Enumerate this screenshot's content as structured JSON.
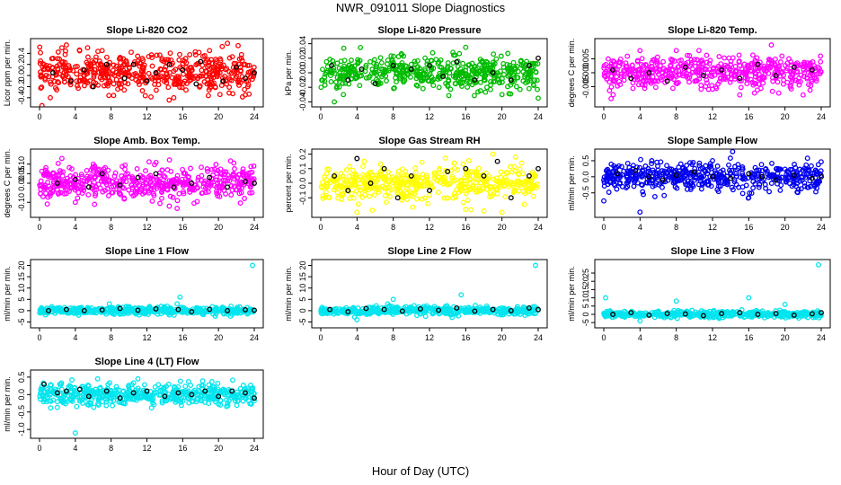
{
  "figure": {
    "title": "NWR_091011  Slope Diagnostics",
    "xlabel": "Hour of Day (UTC)"
  },
  "chart_data": [
    {
      "type": "scatter",
      "title": "Slope Li-820 CO2",
      "ylabel": "Licor ppm per min.",
      "xlim": [
        0,
        24
      ],
      "ylim": [
        -0.5,
        0.6
      ],
      "xticks": [
        0,
        4,
        8,
        12,
        16,
        20,
        24
      ],
      "yticks": [
        -0.4,
        -0.2,
        0.0,
        0.2,
        0.4
      ],
      "ytick_labels": [
        "-0.4",
        "-0.2",
        "0.0",
        "0.2",
        "0.4"
      ],
      "color": "#ff0000",
      "spread": 0.17,
      "n": 500,
      "outliers": [
        [
          1.2,
          -0.4
        ],
        [
          2.5,
          0.5
        ],
        [
          3,
          0.55
        ],
        [
          7,
          0.45
        ],
        [
          15,
          -0.4
        ],
        [
          19,
          0.45
        ],
        [
          21,
          0.58
        ],
        [
          23,
          -0.35
        ]
      ],
      "dark_points": [
        [
          1.5,
          0.05
        ],
        [
          3.5,
          -0.1
        ],
        [
          5,
          0.1
        ],
        [
          6,
          -0.2
        ],
        [
          7.5,
          0.2
        ],
        [
          9.5,
          -0.05
        ],
        [
          10.5,
          0.2
        ],
        [
          12,
          -0.1
        ],
        [
          13,
          0.05
        ],
        [
          14.5,
          0.2
        ],
        [
          16,
          0.1
        ],
        [
          17.5,
          -0.15
        ],
        [
          18,
          0.25
        ],
        [
          20.5,
          -0.1
        ],
        [
          22,
          0.15
        ],
        [
          23,
          -0.05
        ],
        [
          24,
          0.05
        ]
      ],
      "series": [
        {
          "name": "slope",
          "values": "scatter of ~500 points centred near 0.05"
        }
      ]
    },
    {
      "type": "scatter",
      "title": "Slope Li-820 Pressure",
      "ylabel": "kPa per min.",
      "xlim": [
        0,
        24
      ],
      "ylim": [
        -0.042,
        0.042
      ],
      "xticks": [
        0,
        4,
        8,
        12,
        16,
        20,
        24
      ],
      "yticks": [
        -0.04,
        -0.02,
        0.0,
        0.02,
        0.04
      ],
      "ytick_labels": [
        "-0.04",
        "-0.02",
        "0.00",
        "0.02",
        "0.04"
      ],
      "color": "#00bb00",
      "spread": 0.011,
      "n": 500,
      "outliers": [
        [
          1.5,
          -0.04
        ],
        [
          16,
          0.035
        ],
        [
          2.5,
          -0.03
        ],
        [
          20,
          -0.03
        ],
        [
          24,
          -0.035
        ]
      ],
      "dark_points": [
        [
          1.2,
          0.01
        ],
        [
          3,
          -0.01
        ],
        [
          4.5,
          0.005
        ],
        [
          6,
          -0.015
        ],
        [
          8,
          0.01
        ],
        [
          10,
          0.005
        ],
        [
          12,
          0.01
        ],
        [
          13.5,
          -0.005
        ],
        [
          15,
          0.015
        ],
        [
          17,
          -0.01
        ],
        [
          19,
          0.0
        ],
        [
          21,
          -0.01
        ],
        [
          23,
          0.01
        ],
        [
          24,
          0.02
        ]
      ],
      "series": [
        {
          "name": "slope",
          "values": "scatter of ~500 points centred near 0"
        }
      ]
    },
    {
      "type": "scatter",
      "title": "Slope Li-820 Temp.",
      "ylabel": "degrees C per min.",
      "xlim": [
        0,
        24
      ],
      "ylim": [
        -0.011,
        0.011
      ],
      "xticks": [
        0,
        4,
        8,
        12,
        16,
        20,
        24
      ],
      "yticks": [
        -0.005,
        0.0,
        0.005
      ],
      "ytick_labels": [
        "-0.005",
        "0.000",
        "0.005"
      ],
      "color": "#ff00ff",
      "spread": 0.0028,
      "n": 500,
      "outliers": [
        [
          4,
          0.008
        ],
        [
          8,
          0.008
        ],
        [
          10.5,
          0.008
        ],
        [
          18.5,
          0.01
        ],
        [
          15,
          -0.008
        ],
        [
          22,
          -0.008
        ]
      ],
      "dark_points": [
        [
          1,
          0.001
        ],
        [
          3,
          -0.002
        ],
        [
          5,
          0.0
        ],
        [
          7,
          -0.003
        ],
        [
          9,
          0.002
        ],
        [
          11,
          -0.001
        ],
        [
          13,
          0.001
        ],
        [
          15,
          -0.002
        ],
        [
          17,
          0.003
        ],
        [
          19,
          -0.001
        ],
        [
          21,
          0.002
        ],
        [
          23,
          0.001
        ]
      ],
      "series": [
        {
          "name": "slope",
          "values": "scatter of ~500 points centred near 0"
        }
      ]
    },
    {
      "type": "scatter",
      "title": "Slope Amb. Box Temp.",
      "ylabel": "degrees C per min.",
      "xlim": [
        0,
        24
      ],
      "ylim": [
        -0.16,
        0.16
      ],
      "xticks": [
        0,
        4,
        8,
        12,
        16,
        20,
        24
      ],
      "yticks": [
        -0.1,
        0.0,
        0.05,
        0.1
      ],
      "ytick_labels": [
        "-0.10",
        "0.00",
        "0.05",
        "0.10"
      ],
      "color": "#ff00ff",
      "spread": 0.045,
      "n": 500,
      "outliers": [
        [
          2.5,
          0.13
        ],
        [
          4,
          -0.1
        ],
        [
          6,
          0.1
        ],
        [
          14.5,
          -0.12
        ]
      ],
      "dark_points": [
        [
          2,
          0.0
        ],
        [
          4,
          0.02
        ],
        [
          5.5,
          -0.02
        ],
        [
          7,
          0.05
        ],
        [
          9,
          -0.01
        ],
        [
          11,
          0.03
        ],
        [
          13,
          0.05
        ],
        [
          15,
          -0.02
        ],
        [
          17,
          0.0
        ],
        [
          19,
          0.03
        ],
        [
          21,
          -0.02
        ],
        [
          23,
          0.01
        ],
        [
          24,
          0.0
        ]
      ],
      "series": [
        {
          "name": "slope",
          "values": "scatter of ~500 points centred near 0"
        }
      ]
    },
    {
      "type": "scatter",
      "title": "Slope Gas Stream RH",
      "ylabel": "percent per min.",
      "xlim": [
        0,
        24
      ],
      "ylim": [
        -0.21,
        0.21
      ],
      "xticks": [
        0,
        4,
        8,
        12,
        16,
        20,
        24
      ],
      "yticks": [
        -0.1,
        0.0,
        0.1,
        0.2
      ],
      "ytick_labels": [
        "-0.1",
        "0.0",
        "0.1",
        "0.2"
      ],
      "color": "#ffff00",
      "spread": 0.055,
      "n": 500,
      "outliers": [
        [
          4,
          -0.2
        ],
        [
          16,
          -0.18
        ],
        [
          18,
          -0.19
        ],
        [
          19,
          0.2
        ],
        [
          20,
          -0.2
        ],
        [
          21.5,
          0.18
        ]
      ],
      "dark_points": [
        [
          1.5,
          0.05
        ],
        [
          3,
          -0.05
        ],
        [
          4,
          0.17
        ],
        [
          5.5,
          0.0
        ],
        [
          7,
          0.1
        ],
        [
          8.5,
          -0.1
        ],
        [
          10,
          0.05
        ],
        [
          12,
          -0.05
        ],
        [
          14,
          0.08
        ],
        [
          16,
          0.1
        ],
        [
          18,
          0.05
        ],
        [
          19.5,
          0.15
        ],
        [
          21,
          -0.1
        ],
        [
          23,
          0.05
        ],
        [
          24,
          0.1
        ]
      ],
      "series": [
        {
          "name": "slope",
          "values": "scatter of ~500 points centred near 0"
        }
      ]
    },
    {
      "type": "scatter",
      "title": "Slope Sample Flow",
      "ylabel": "ml/min per min.",
      "xlim": [
        0,
        24
      ],
      "ylim": [
        -1.15,
        0.75
      ],
      "xticks": [
        0,
        4,
        8,
        12,
        16,
        20,
        24
      ],
      "yticks": [
        -0.5,
        0.0,
        0.5
      ],
      "ytick_labels": [
        "-0.5",
        "0.0",
        "0.5"
      ],
      "color": "#0000ee",
      "spread": 0.22,
      "n": 500,
      "outliers": [
        [
          0,
          -0.75
        ],
        [
          4,
          -1.1
        ],
        [
          12,
          0.5
        ],
        [
          16,
          -0.65
        ]
      ],
      "dark_points": [
        [
          1.5,
          0.1
        ],
        [
          3.5,
          0.2
        ],
        [
          5,
          0.0
        ],
        [
          6.5,
          -0.1
        ],
        [
          8,
          0.05
        ],
        [
          10,
          0.15
        ],
        [
          12,
          0.0
        ],
        [
          14,
          -0.05
        ],
        [
          16,
          0.1
        ],
        [
          17.5,
          0.0
        ],
        [
          19,
          -0.1
        ],
        [
          21,
          0.05
        ],
        [
          23,
          -0.05
        ],
        [
          24,
          0.0
        ]
      ],
      "series": [
        {
          "name": "slope",
          "values": "scatter of ~500 points centred near 0"
        }
      ]
    },
    {
      "type": "scatter",
      "title": "Slope Line 1 Flow",
      "ylabel": "ml/min per min.",
      "xlim": [
        0,
        24
      ],
      "ylim": [
        -6,
        21
      ],
      "xticks": [
        0,
        4,
        8,
        12,
        16,
        20,
        24
      ],
      "yticks": [
        -5,
        0,
        5,
        10,
        15,
        20
      ],
      "ytick_labels": [
        "-5",
        "0",
        "5",
        "10",
        "15",
        "20"
      ],
      "color": "#00e5ee",
      "spread": 0.8,
      "n": 500,
      "outliers": [
        [
          7.8,
          3
        ],
        [
          15.7,
          6
        ],
        [
          23.8,
          20
        ]
      ],
      "dark_points": [
        [
          1,
          0
        ],
        [
          3,
          0.5
        ],
        [
          5,
          0
        ],
        [
          7,
          0.3
        ],
        [
          9,
          1
        ],
        [
          11,
          0.2
        ],
        [
          13,
          0.8
        ],
        [
          15.5,
          0.5
        ],
        [
          17,
          -0.5
        ],
        [
          19,
          0.6
        ],
        [
          21,
          0
        ],
        [
          23,
          0.4
        ],
        [
          24,
          0.2
        ]
      ],
      "series": [
        {
          "name": "slope",
          "values": "scatter of ~500 points centred near 0"
        }
      ]
    },
    {
      "type": "scatter",
      "title": "Slope Line 2 Flow",
      "ylabel": "ml/min per min.",
      "xlim": [
        0,
        24
      ],
      "ylim": [
        -6,
        21
      ],
      "xticks": [
        0,
        4,
        8,
        12,
        16,
        20,
        24
      ],
      "yticks": [
        -5,
        0,
        5,
        10,
        15,
        20
      ],
      "ytick_labels": [
        "-5",
        "0",
        "5",
        "10",
        "15",
        "20"
      ],
      "color": "#00e5ee",
      "spread": 0.9,
      "n": 500,
      "outliers": [
        [
          8,
          5
        ],
        [
          15.5,
          7
        ],
        [
          14.5,
          -3
        ],
        [
          23.7,
          20
        ],
        [
          4,
          -4
        ]
      ],
      "dark_points": [
        [
          1,
          0.5
        ],
        [
          3,
          -0.5
        ],
        [
          5,
          1
        ],
        [
          7,
          0.5
        ],
        [
          9,
          -0.2
        ],
        [
          11,
          0.8
        ],
        [
          13,
          0.2
        ],
        [
          15,
          1.2
        ],
        [
          17,
          -0.2
        ],
        [
          19,
          0.5
        ],
        [
          21,
          0
        ],
        [
          23,
          1.2
        ],
        [
          24,
          0.5
        ]
      ],
      "series": [
        {
          "name": "slope",
          "values": "scatter of ~500 points centred near 0"
        }
      ]
    },
    {
      "type": "scatter",
      "title": "Slope Line 3 Flow",
      "ylabel": "ml/min per min.",
      "xlim": [
        0,
        24
      ],
      "ylim": [
        -6,
        31
      ],
      "xticks": [
        0,
        4,
        8,
        12,
        16,
        20,
        24
      ],
      "yticks": [
        -5,
        0,
        5,
        10,
        15,
        20,
        25
      ],
      "ytick_labels": [
        "-5",
        "0",
        "5",
        "10",
        "15",
        "20",
        "25"
      ],
      "color": "#00e5ee",
      "spread": 0.9,
      "n": 500,
      "outliers": [
        [
          0.2,
          10
        ],
        [
          8,
          8
        ],
        [
          16,
          10
        ],
        [
          20,
          6
        ],
        [
          23.7,
          30
        ],
        [
          4,
          -4
        ]
      ],
      "dark_points": [
        [
          1,
          0
        ],
        [
          3,
          1
        ],
        [
          5,
          -0.5
        ],
        [
          7,
          0.5
        ],
        [
          9,
          0.2
        ],
        [
          11,
          -0.8
        ],
        [
          13,
          0.5
        ],
        [
          15,
          1
        ],
        [
          17,
          0
        ],
        [
          19,
          0.5
        ],
        [
          21,
          -0.5
        ],
        [
          23,
          0.3
        ],
        [
          24,
          1
        ]
      ],
      "series": [
        {
          "name": "slope",
          "values": "scatter of ~500 points centred near 0"
        }
      ]
    },
    {
      "type": "scatter",
      "title": "Slope Line 4 (LT) Flow",
      "ylabel": "ml/min per min.",
      "xlim": [
        0,
        24
      ],
      "ylim": [
        -1.15,
        0.6
      ],
      "xticks": [
        0,
        4,
        8,
        12,
        16,
        20,
        24
      ],
      "yticks": [
        -1.0,
        -0.5,
        0.0,
        0.5
      ],
      "ytick_labels": [
        "-1.0",
        "-0.5",
        "0.0",
        "0.5"
      ],
      "color": "#00e5ee",
      "spread": 0.15,
      "n": 500,
      "outliers": [
        [
          4,
          -1.1
        ],
        [
          5.5,
          -0.3
        ],
        [
          6.5,
          0.45
        ],
        [
          11,
          0.45
        ]
      ],
      "dark_points": [
        [
          0.5,
          0.3
        ],
        [
          2,
          0.05
        ],
        [
          3,
          0.1
        ],
        [
          4.5,
          0.15
        ],
        [
          5.5,
          -0.05
        ],
        [
          7.5,
          0.1
        ],
        [
          9,
          -0.1
        ],
        [
          10.5,
          0.05
        ],
        [
          12,
          0.1
        ],
        [
          14,
          -0.05
        ],
        [
          15.5,
          0.05
        ],
        [
          17,
          0.0
        ],
        [
          18.5,
          0.1
        ],
        [
          20,
          -0.05
        ],
        [
          21.5,
          0.1
        ],
        [
          23,
          0.05
        ],
        [
          24,
          -0.1
        ]
      ],
      "series": [
        {
          "name": "slope",
          "values": "scatter of ~500 points centred near 0"
        }
      ]
    }
  ]
}
